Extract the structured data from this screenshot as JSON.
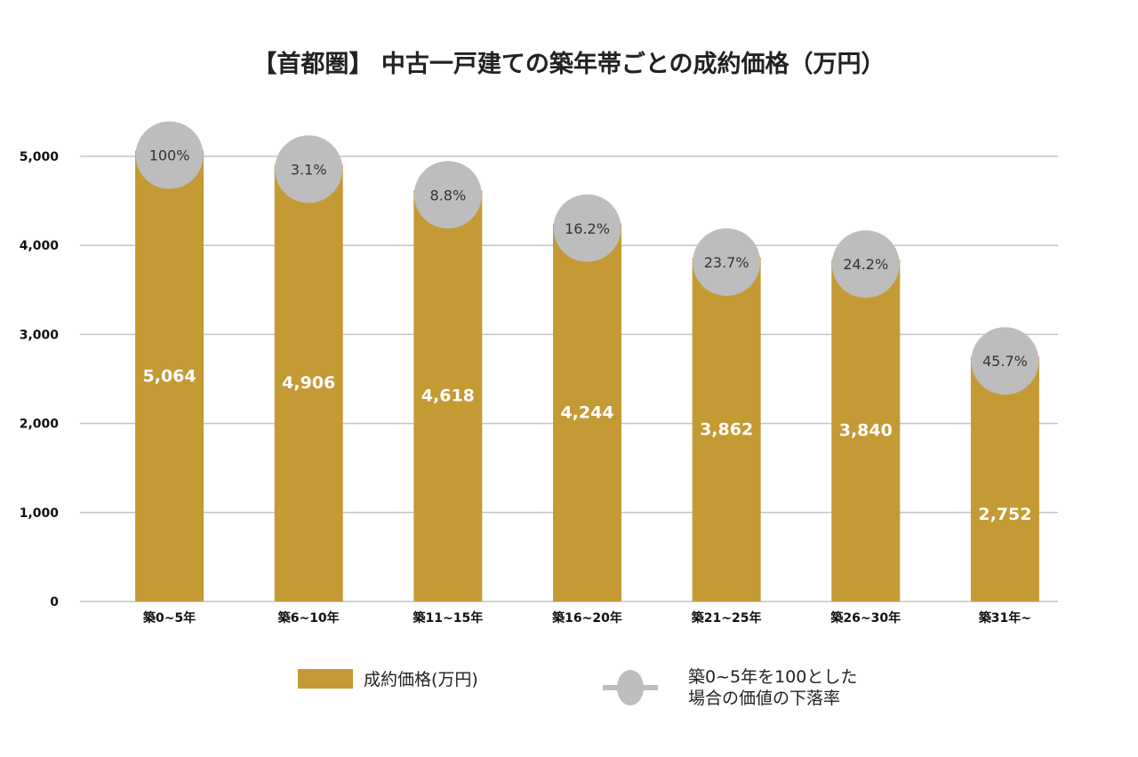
{
  "chart_data": {
    "type": "bar",
    "title": "【首都圏】 中古一戸建ての築年帯ごとの成約価格（万円）",
    "categories": [
      "築0~5年",
      "築6~10年",
      "築11~15年",
      "築16~20年",
      "築21~25年",
      "築26~30年",
      "築31年~"
    ],
    "series": [
      {
        "name": "成約価格(万円)",
        "type": "bar",
        "color": "#c49a35",
        "values": [
          5064,
          4906,
          4618,
          4244,
          3862,
          3840,
          2752
        ],
        "labels": [
          "5,064",
          "4,906",
          "4,618",
          "4,244",
          "3,862",
          "3,840",
          "2,752"
        ]
      },
      {
        "name": "築0~5年を100とした場合の価値の下落率",
        "type": "marker",
        "color": "#bdbdbd",
        "labels": [
          "100%",
          "3.1%",
          "8.8%",
          "16.2%",
          "23.7%",
          "24.2%",
          "45.7%"
        ]
      }
    ],
    "ylim": [
      0,
      5000
    ],
    "yticks": [
      0,
      1000,
      2000,
      3000,
      4000,
      5000
    ],
    "ytick_labels": [
      "0",
      "1,000",
      "2,000",
      "3,000",
      "4,000",
      "5,000"
    ],
    "grid": true,
    "legend_placement": "bottom",
    "legend": {
      "bar_label": "成約価格(万円)",
      "marker_label_lines": [
        "築0~5年を100とした",
        "場合の価値の下落率"
      ]
    }
  }
}
